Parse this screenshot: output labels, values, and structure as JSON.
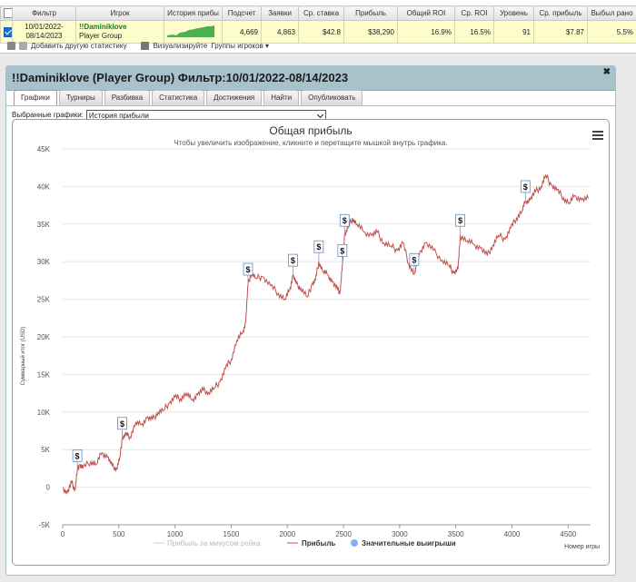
{
  "table": {
    "headers": [
      "",
      "Фильтр",
      "Игрок",
      "История прибы",
      "Подсчет",
      "Заявки",
      "Ср. ставка",
      "Прибыль",
      "Общий ROI",
      "Ср. ROI",
      "Уровень",
      "Ср. прибыль",
      "Выбыл рано"
    ],
    "row": {
      "filter_line1": "10/01/2022-",
      "filter_line2": "08/14/2023",
      "player_name": "!!Daminiklove",
      "player_group": "Player Group",
      "count": "4,669",
      "entries": "4,863",
      "avg_stake": "$42.8",
      "profit": "$38,290",
      "total_roi": "16.9%",
      "avg_roi": "16.5%",
      "level": "91",
      "avg_profit": "$7.87",
      "early_out": "5.5%"
    }
  },
  "toolbar": {
    "add_stats": "Добавить другую статистику",
    "visualize": "Визуализируйте",
    "player_groups": "Группы игроков"
  },
  "panel": {
    "title": "!!Daminiklove (Player Group) Фильтр:10/01/2022-08/14/2023",
    "tabs": [
      "Графики",
      "Турниры",
      "Разбивка",
      "Статистика",
      "Достижения",
      "Найти",
      "Опубликовать"
    ],
    "selected_graphs_label": "Выбранные графики:",
    "selected_graph": "История прибыли"
  },
  "chart_data": {
    "type": "line",
    "title": "Общая прибыль",
    "subtitle": "Чтобы увеличить изображение, кликните и перетащите мышкой внутрь графика.",
    "xlabel": "Номер игры",
    "ylabel": "Суммарный итог (USD)",
    "xlim": [
      0,
      4700
    ],
    "ylim": [
      -5000,
      45000
    ],
    "x_ticks": [
      "0",
      "500",
      "1000",
      "1500",
      "2000",
      "2500",
      "3000",
      "3500",
      "4000",
      "4500"
    ],
    "y_ticks": [
      "-5K",
      "0",
      "5K",
      "10K",
      "15K",
      "20K",
      "25K",
      "30K",
      "35K",
      "40K",
      "45K"
    ],
    "grid": true,
    "legend_position": "bottom",
    "series": [
      {
        "name": "Прибыль за минусом рейка",
        "color": "#cccccc",
        "visible": false
      },
      {
        "name": "Прибыль",
        "color": "#c0504d",
        "points": [
          [
            0,
            0
          ],
          [
            40,
            -800
          ],
          [
            80,
            600
          ],
          [
            110,
            -300
          ],
          [
            130,
            2200
          ],
          [
            150,
            3000
          ],
          [
            180,
            2600
          ],
          [
            250,
            3400
          ],
          [
            300,
            3100
          ],
          [
            350,
            4600
          ],
          [
            400,
            4000
          ],
          [
            440,
            2800
          ],
          [
            480,
            2500
          ],
          [
            510,
            4000
          ],
          [
            530,
            6500
          ],
          [
            560,
            7000
          ],
          [
            600,
            6700
          ],
          [
            650,
            8600
          ],
          [
            700,
            8300
          ],
          [
            750,
            9200
          ],
          [
            800,
            9000
          ],
          [
            850,
            10000
          ],
          [
            900,
            10300
          ],
          [
            950,
            11200
          ],
          [
            1000,
            12000
          ],
          [
            1050,
            11800
          ],
          [
            1100,
            12500
          ],
          [
            1150,
            11600
          ],
          [
            1200,
            12300
          ],
          [
            1250,
            12900
          ],
          [
            1300,
            12600
          ],
          [
            1350,
            13200
          ],
          [
            1400,
            14000
          ],
          [
            1450,
            15800
          ],
          [
            1500,
            17000
          ],
          [
            1550,
            19500
          ],
          [
            1600,
            20500
          ],
          [
            1630,
            22000
          ],
          [
            1650,
            27000
          ],
          [
            1680,
            28500
          ],
          [
            1720,
            27800
          ],
          [
            1780,
            28000
          ],
          [
            1850,
            26800
          ],
          [
            1920,
            25800
          ],
          [
            1980,
            25000
          ],
          [
            2020,
            26200
          ],
          [
            2050,
            28200
          ],
          [
            2080,
            27000
          ],
          [
            2120,
            26500
          ],
          [
            2180,
            25300
          ],
          [
            2220,
            27000
          ],
          [
            2250,
            27500
          ],
          [
            2280,
            30000
          ],
          [
            2320,
            28700
          ],
          [
            2360,
            28300
          ],
          [
            2400,
            27300
          ],
          [
            2450,
            26200
          ],
          [
            2470,
            26000
          ],
          [
            2490,
            29500
          ],
          [
            2510,
            33500
          ],
          [
            2540,
            34500
          ],
          [
            2580,
            35800
          ],
          [
            2620,
            35000
          ],
          [
            2680,
            34000
          ],
          [
            2750,
            33500
          ],
          [
            2800,
            33900
          ],
          [
            2860,
            32500
          ],
          [
            2920,
            32100
          ],
          [
            2980,
            31500
          ],
          [
            3030,
            32500
          ],
          [
            3080,
            29800
          ],
          [
            3130,
            28300
          ],
          [
            3180,
            31300
          ],
          [
            3230,
            32500
          ],
          [
            3300,
            31500
          ],
          [
            3380,
            30200
          ],
          [
            3440,
            29500
          ],
          [
            3480,
            28500
          ],
          [
            3520,
            29000
          ],
          [
            3540,
            33500
          ],
          [
            3600,
            32800
          ],
          [
            3660,
            32300
          ],
          [
            3720,
            31800
          ],
          [
            3780,
            30800
          ],
          [
            3830,
            32200
          ],
          [
            3880,
            33500
          ],
          [
            3940,
            33000
          ],
          [
            3990,
            34500
          ],
          [
            4040,
            35800
          ],
          [
            4090,
            36800
          ],
          [
            4120,
            38000
          ],
          [
            4160,
            38200
          ],
          [
            4210,
            39300
          ],
          [
            4260,
            40000
          ],
          [
            4300,
            41500
          ],
          [
            4350,
            40200
          ],
          [
            4400,
            39500
          ],
          [
            4460,
            38500
          ],
          [
            4510,
            37800
          ],
          [
            4560,
            38800
          ],
          [
            4620,
            38200
          ],
          [
            4680,
            38400
          ]
        ]
      },
      {
        "name": "Значительные выигрыши",
        "color": "#7cb5ec",
        "points": [
          [
            130,
            2200
          ],
          [
            530,
            6500
          ],
          [
            1650,
            27000
          ],
          [
            2050,
            28200
          ],
          [
            2280,
            30000
          ],
          [
            2490,
            29500
          ],
          [
            2510,
            33500
          ],
          [
            3130,
            28300
          ],
          [
            3540,
            33500
          ],
          [
            4120,
            38000
          ]
        ]
      }
    ]
  }
}
